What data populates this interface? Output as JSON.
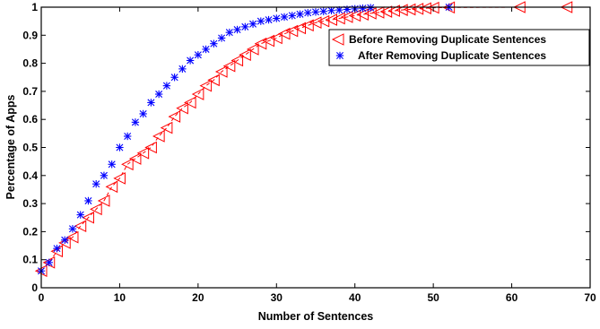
{
  "chart_data": {
    "type": "line",
    "title": "",
    "xlabel": "Number of Sentences",
    "ylabel": "Percentage of Apps",
    "xlim": [
      0,
      70
    ],
    "ylim": [
      0,
      1
    ],
    "x_ticks": [
      "0",
      "10",
      "20",
      "30",
      "40",
      "50",
      "60",
      "70"
    ],
    "y_ticks": [
      "0",
      "0.1",
      "0.2",
      "0.3",
      "0.4",
      "0.5",
      "0.6",
      "0.7",
      "0.8",
      "0.9",
      "1"
    ],
    "grid": false,
    "legend_position": "top-right",
    "series": [
      {
        "name": "Before Removing Duplicate Sentences",
        "marker": "left-triangle",
        "line_style": "dashed",
        "color": "#ff0000",
        "x": [
          0,
          1,
          2,
          3,
          4,
          5,
          6,
          7,
          8,
          9,
          10,
          11,
          12,
          13,
          14,
          15,
          16,
          17,
          18,
          19,
          20,
          21,
          22,
          23,
          24,
          25,
          26,
          27,
          28,
          29,
          30,
          31,
          32,
          33,
          34,
          35,
          36,
          37,
          38,
          39,
          40,
          41,
          42,
          43,
          44,
          45,
          46,
          47,
          48,
          49,
          50,
          52,
          61,
          67
        ],
        "y": [
          0.06,
          0.09,
          0.13,
          0.16,
          0.18,
          0.22,
          0.25,
          0.28,
          0.31,
          0.36,
          0.39,
          0.44,
          0.46,
          0.48,
          0.5,
          0.54,
          0.57,
          0.61,
          0.64,
          0.66,
          0.69,
          0.72,
          0.74,
          0.77,
          0.79,
          0.81,
          0.83,
          0.85,
          0.87,
          0.88,
          0.89,
          0.905,
          0.915,
          0.925,
          0.935,
          0.945,
          0.95,
          0.955,
          0.96,
          0.965,
          0.97,
          0.974,
          0.978,
          0.981,
          0.984,
          0.987,
          0.99,
          0.992,
          0.994,
          0.996,
          0.998,
          0.999,
          1.0,
          1.0
        ]
      },
      {
        "name": "After Removing Duplicate Sentences",
        "marker": "asterisk",
        "line_style": "none",
        "color": "#0000ff",
        "x": [
          0,
          1,
          2,
          3,
          4,
          5,
          6,
          7,
          8,
          9,
          10,
          11,
          12,
          13,
          14,
          15,
          16,
          17,
          18,
          19,
          20,
          21,
          22,
          23,
          24,
          25,
          26,
          27,
          28,
          29,
          30,
          31,
          32,
          33,
          34,
          35,
          36,
          37,
          38,
          39,
          40,
          41,
          42,
          52
        ],
        "y": [
          0.06,
          0.09,
          0.14,
          0.17,
          0.21,
          0.26,
          0.31,
          0.37,
          0.4,
          0.44,
          0.5,
          0.54,
          0.59,
          0.62,
          0.66,
          0.69,
          0.72,
          0.75,
          0.78,
          0.81,
          0.83,
          0.85,
          0.87,
          0.89,
          0.91,
          0.92,
          0.93,
          0.94,
          0.95,
          0.955,
          0.96,
          0.965,
          0.97,
          0.975,
          0.98,
          0.983,
          0.985,
          0.988,
          0.99,
          0.992,
          0.994,
          0.996,
          0.998,
          1.0
        ]
      }
    ]
  }
}
